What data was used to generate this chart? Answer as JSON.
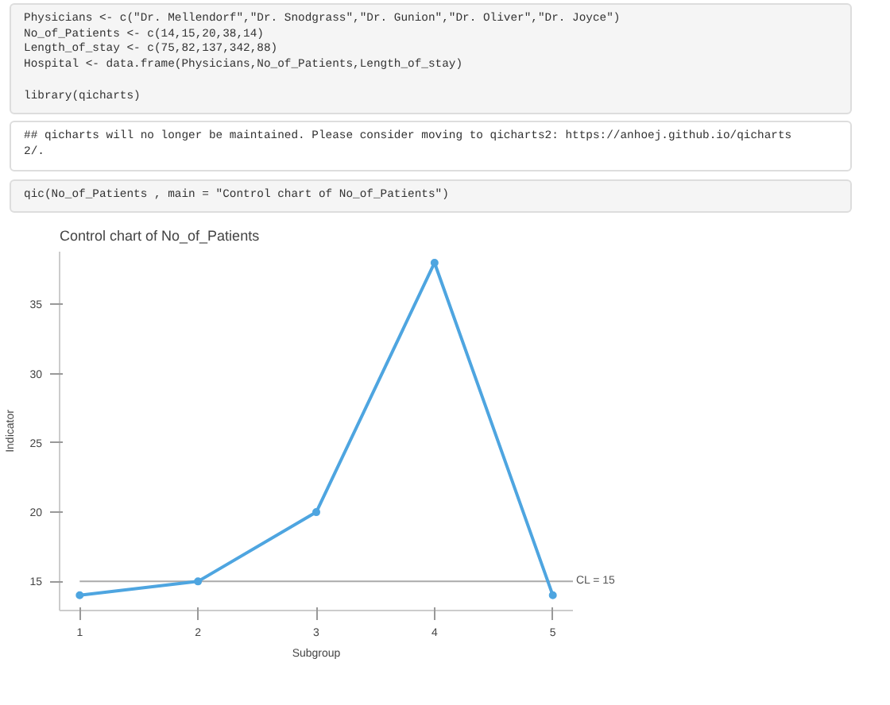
{
  "chart_data": {
    "type": "line",
    "title": "Control chart of No_of_Patients",
    "xlabel": "Subgroup",
    "ylabel": "Indicator",
    "x": [
      1,
      2,
      3,
      4,
      5
    ],
    "series": [
      {
        "color": "#4ea5e0",
        "values": [
          14,
          15,
          20,
          38,
          14
        ]
      }
    ],
    "xlim": [
      0.83,
      5.17
    ],
    "xticks": [
      1,
      2,
      3,
      4,
      5
    ],
    "ylim": [
      12.9,
      38.8
    ],
    "yticks": [
      15,
      20,
      25,
      30,
      35
    ],
    "ref_lines": [
      {
        "axis": "y",
        "value": 15,
        "label": "CL = 15",
        "color": "#aaaaaa"
      }
    ],
    "grid": false,
    "marker": "circle",
    "line_style": "solid",
    "annotations": [
      "Physicians <- c(\"Dr. Mellendorf\",\"Dr. Snodgrass\",\"Dr. Gunion\",\"Dr. Oliver\",\"Dr. Joyce\")\nNo_of_Patients <- c(14,15,20,38,14)\nLength_of_stay <- c(75,82,137,342,88)\nHospital <- data.frame(Physicians,No_of_Patients,Length_of_stay)\n\nlibrary(qicharts)",
      "## qicharts will no longer be maintained. Please consider moving to qicharts2: https://anhoej.github.io/qicharts\n2/.",
      "qic(No_of_Patients , main = \"Control chart of No_of_Patients\")"
    ]
  }
}
